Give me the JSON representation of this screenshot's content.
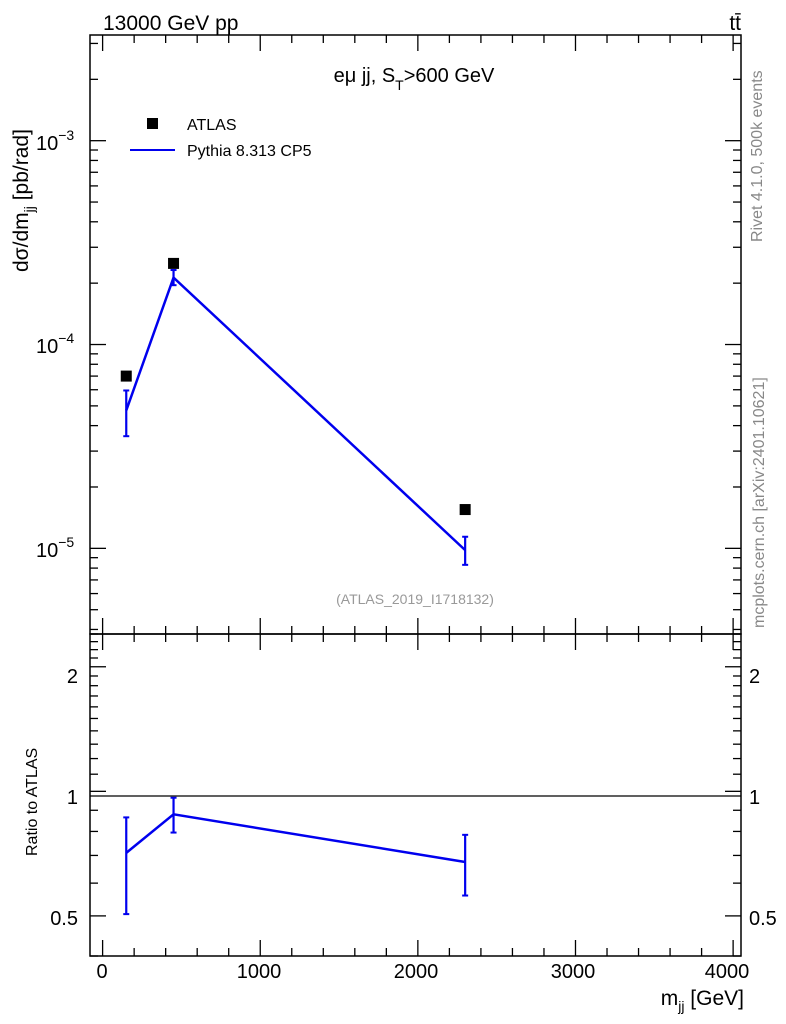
{
  "header": {
    "energy": "13000 GeV pp",
    "process": "tt̄"
  },
  "side_labels": {
    "rivet": "Rivet 4.1.0,  500k events",
    "mcplots": "mcplots.cern.ch [arXiv:2401.10621]"
  },
  "main_plot": {
    "cut_label_prefix": "eμ jj, S",
    "cut_label_sub": "T",
    "cut_label_suffix": ">600 GeV",
    "ylabel_prefix": "dσ/dm",
    "ylabel_sub": "jj",
    "ylabel_suffix": " [pb/rad]",
    "analysis_tag": "(ATLAS_2019_I1718132)",
    "y_tick_labels": [
      {
        "base": "10",
        "exp": "−3",
        "value": 0.001
      },
      {
        "base": "10",
        "exp": "−4",
        "value": 0.0001
      },
      {
        "base": "10",
        "exp": "−5",
        "value": 1e-05
      }
    ]
  },
  "ratio_plot": {
    "ylabel": "Ratio to ATLAS",
    "y_tick_labels": [
      "2",
      "1",
      "0.5"
    ]
  },
  "x_axis": {
    "label_prefix": "m",
    "label_sub": "jj",
    "label_suffix": " [GeV]",
    "tick_labels": [
      "0",
      "1000",
      "2000",
      "3000",
      "4000"
    ]
  },
  "legend": {
    "data_label": "ATLAS",
    "mc_label": "Pythia 8.313 CP5"
  },
  "colors": {
    "data": "#000000",
    "mc": "#0000ee",
    "side_text": "#888888"
  },
  "chart_data": [
    {
      "type": "scatter",
      "scale": "log-y",
      "xlim": [
        -80,
        4050
      ],
      "ylim": [
        3.8e-06,
        0.0033
      ],
      "series": [
        {
          "name": "ATLAS",
          "style": "markers",
          "x": [
            150,
            450,
            2300
          ],
          "y": [
            7e-05,
            0.00025,
            1.55e-05
          ]
        },
        {
          "name": "Pythia 8.313 CP5",
          "style": "line",
          "x": [
            150,
            450,
            2300
          ],
          "y": [
            4.75e-05,
            0.000213,
            9.8e-06
          ],
          "err_low": [
            3.55e-05,
            0.0001955,
            8.3e-06
          ],
          "err_high": [
            5.95e-05,
            0.000232,
            1.14e-05
          ]
        }
      ]
    },
    {
      "type": "line",
      "scale": "log-y",
      "xlim": [
        -80,
        4050
      ],
      "ylim": [
        0.4,
        2.4
      ],
      "reference_line": 1,
      "series": [
        {
          "name": "Pythia 8.313 CP5",
          "x": [
            150,
            450,
            2300
          ],
          "y": [
            0.71,
            0.88,
            0.675
          ],
          "err_low": [
            0.505,
            0.795,
            0.56
          ],
          "err_high": [
            0.865,
            0.965,
            0.785
          ]
        }
      ]
    }
  ]
}
